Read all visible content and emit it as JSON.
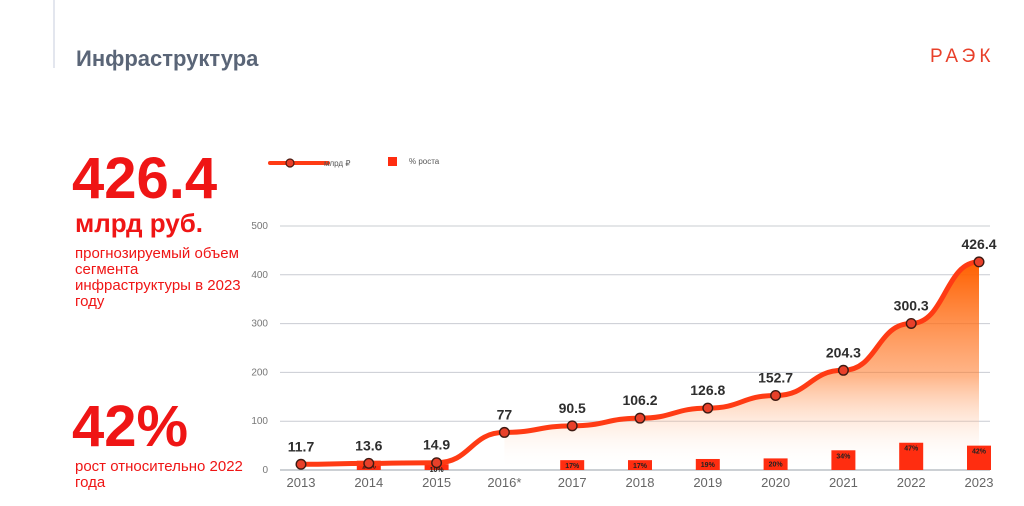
{
  "header": {
    "title": "Инфраструктура",
    "logo": "РАЭК"
  },
  "highlight": {
    "value": "426.4",
    "unit": "млрд руб.",
    "description": "прогнозируемый объем сегмента инфраструктуры в 2023 году"
  },
  "growth": {
    "value": "42%",
    "description": "рост относительно 2022 года"
  },
  "chart_data": {
    "type": "line",
    "categories": [
      "2013",
      "2014",
      "2015",
      "2016*",
      "2017",
      "2018",
      "2019",
      "2020",
      "2021",
      "2022",
      "2023"
    ],
    "series": [
      {
        "name": "млрд ₽",
        "type": "line",
        "values": [
          11.7,
          13.6,
          14.9,
          77,
          90.5,
          106.2,
          126.8,
          152.7,
          204.3,
          300.3,
          426.4
        ],
        "labels": [
          "11.7",
          "13.6",
          "14.9",
          "77",
          "90.5",
          "106.2",
          "126.8",
          "152.7",
          "204.3",
          "300.3",
          "426.4"
        ]
      },
      {
        "name": "% роста",
        "type": "bar",
        "values": [
          null,
          16,
          10,
          null,
          17,
          17,
          19,
          20,
          34,
          47,
          42
        ],
        "labels": [
          "",
          "16%",
          "10%",
          "",
          "17%",
          "17%",
          "19%",
          "20%",
          "34%",
          "47%",
          "42%"
        ]
      }
    ],
    "yticks": [
      "0",
      "100",
      "200",
      "300",
      "400",
      "500"
    ],
    "ylim": [
      0,
      500
    ],
    "grid": true,
    "legend": "top-left",
    "colors": {
      "line": "#ff3b14",
      "bar": "#ff2d10",
      "area": "#ff6a00",
      "marker": "#e8402a"
    }
  }
}
